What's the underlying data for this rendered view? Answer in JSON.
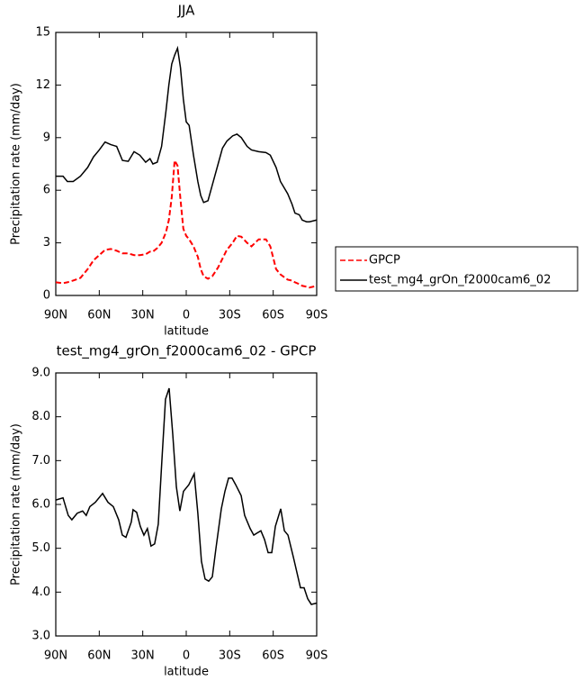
{
  "chart_data": [
    {
      "type": "line",
      "title": "JJA",
      "x_label": "latitude",
      "y_label": "Precipitation rate (mm/day)",
      "x": [
        90,
        85,
        82,
        78,
        73,
        68,
        64,
        60,
        56,
        52,
        48,
        44,
        40,
        36,
        32,
        28,
        25,
        23,
        20,
        17,
        14,
        12,
        10,
        8,
        6,
        4,
        2,
        0,
        -2,
        -5,
        -8,
        -10,
        -12,
        -15,
        -18,
        -22,
        -25,
        -28,
        -32,
        -35,
        -38,
        -42,
        -45,
        -50,
        -55,
        -58,
        -62,
        -65,
        -70,
        -73,
        -75,
        -78,
        -80,
        -83,
        -85,
        -90
      ],
      "series": [
        {
          "name": "GPCP",
          "color": "#ff0000",
          "style": "dashed",
          "values": [
            0.75,
            0.7,
            0.75,
            0.85,
            1.0,
            1.5,
            2.0,
            2.3,
            2.6,
            2.65,
            2.55,
            2.4,
            2.4,
            2.3,
            2.3,
            2.35,
            2.5,
            2.5,
            2.7,
            3.0,
            3.6,
            4.3,
            5.6,
            7.7,
            7.4,
            5.5,
            3.8,
            3.4,
            3.2,
            2.8,
            2.2,
            1.5,
            1.1,
            0.95,
            1.1,
            1.6,
            2.1,
            2.6,
            3.0,
            3.4,
            3.35,
            3.0,
            2.8,
            3.2,
            3.2,
            2.8,
            1.5,
            1.2,
            0.9,
            0.85,
            0.75,
            0.65,
            0.55,
            0.5,
            0.45,
            0.55
          ]
        },
        {
          "name": "test_mg4_grOn_f2000cam6_02",
          "color": "#000000",
          "style": "solid",
          "values": [
            6.8,
            6.8,
            6.5,
            6.5,
            6.8,
            7.3,
            7.9,
            8.3,
            8.75,
            8.6,
            8.5,
            7.7,
            7.65,
            8.2,
            8.0,
            7.6,
            7.8,
            7.5,
            7.6,
            8.5,
            10.5,
            12.0,
            13.2,
            13.7,
            14.1,
            13.0,
            11.2,
            9.9,
            9.7,
            8.0,
            6.5,
            5.7,
            5.3,
            5.4,
            6.3,
            7.5,
            8.4,
            8.8,
            9.1,
            9.2,
            9.0,
            8.5,
            8.3,
            8.2,
            8.15,
            8.0,
            7.3,
            6.5,
            5.8,
            5.2,
            4.7,
            4.6,
            4.3,
            4.2,
            4.2,
            4.3
          ]
        }
      ],
      "xlim": [
        90,
        -90
      ],
      "xticks": [
        {
          "value": 90,
          "label": "90N"
        },
        {
          "value": 60,
          "label": "60N"
        },
        {
          "value": 30,
          "label": "30N"
        },
        0,
        {
          "value": -30,
          "label": "30S"
        },
        {
          "value": -60,
          "label": "60S"
        },
        {
          "value": -90,
          "label": "90S"
        }
      ],
      "ylim": [
        0,
        15
      ],
      "yticks": [
        0,
        3,
        6,
        9,
        12,
        15
      ],
      "legend": "right"
    },
    {
      "type": "line",
      "title": "test_mg4_grOn_f2000cam6_02 - GPCP",
      "x_label": "latitude",
      "y_label": "Precipitation rate (mm/day)",
      "x": [
        90,
        85.0,
        81.4,
        78.9,
        75.2,
        71.5,
        69.0,
        66.5,
        62.7,
        57.7,
        54.0,
        50.3,
        46.6,
        44.1,
        41.6,
        37.9,
        36.7,
        34.2,
        31.7,
        29.2,
        26.8,
        24.3,
        21.8,
        19.3,
        16.8,
        14.3,
        11.8,
        9.3,
        6.8,
        4.4,
        1.9,
        -1.8,
        -5.5,
        -8.0,
        -10.5,
        -13.0,
        -15.5,
        -18.0,
        -20.5,
        -24.2,
        -26.7,
        -29.2,
        -31.6,
        -34.1,
        -37.9,
        -40.3,
        -44.1,
        -46.6,
        -49.0,
        -51.5,
        -54.0,
        -56.5,
        -59.0,
        -61.5,
        -65.2,
        -67.7,
        -70.2,
        -73.9,
        -78.8,
        -81.3,
        -83.8,
        -86.3,
        -90
      ],
      "series": [
        {
          "color": "#000000",
          "style": "solid",
          "values": [
            6.1,
            6.15,
            5.75,
            5.65,
            5.8,
            5.85,
            5.75,
            5.95,
            6.05,
            6.25,
            6.05,
            5.95,
            5.65,
            5.3,
            5.25,
            5.6,
            5.88,
            5.82,
            5.5,
            5.3,
            5.45,
            5.05,
            5.1,
            5.55,
            7.0,
            8.4,
            8.65,
            7.6,
            6.4,
            5.85,
            6.3,
            6.45,
            6.7,
            5.8,
            4.7,
            4.3,
            4.25,
            4.35,
            5.0,
            5.9,
            6.3,
            6.6,
            6.6,
            6.45,
            6.2,
            5.75,
            5.45,
            5.3,
            5.35,
            5.4,
            5.2,
            4.9,
            4.9,
            5.5,
            5.9,
            5.4,
            5.3,
            4.8,
            4.1,
            4.1,
            3.85,
            3.72,
            3.75
          ]
        }
      ],
      "xlim": [
        90,
        -90
      ],
      "xticks": [
        {
          "value": 90,
          "label": "90N"
        },
        {
          "value": 60,
          "label": "60N"
        },
        {
          "value": 30,
          "label": "30N"
        },
        0,
        {
          "value": -30,
          "label": "30S"
        },
        {
          "value": -60,
          "label": "60S"
        },
        {
          "value": -90,
          "label": "90S"
        }
      ],
      "ylim": [
        3,
        9
      ],
      "yticks": [
        {
          "value": 3,
          "label": "3.0"
        },
        {
          "value": 4,
          "label": "4.0"
        },
        {
          "value": 5,
          "label": "5.0"
        },
        {
          "value": 6,
          "label": "6.0"
        },
        {
          "value": 7,
          "label": "7.0"
        },
        {
          "value": 8,
          "label": "8.0"
        },
        {
          "value": 9,
          "label": "9.0"
        }
      ]
    }
  ]
}
